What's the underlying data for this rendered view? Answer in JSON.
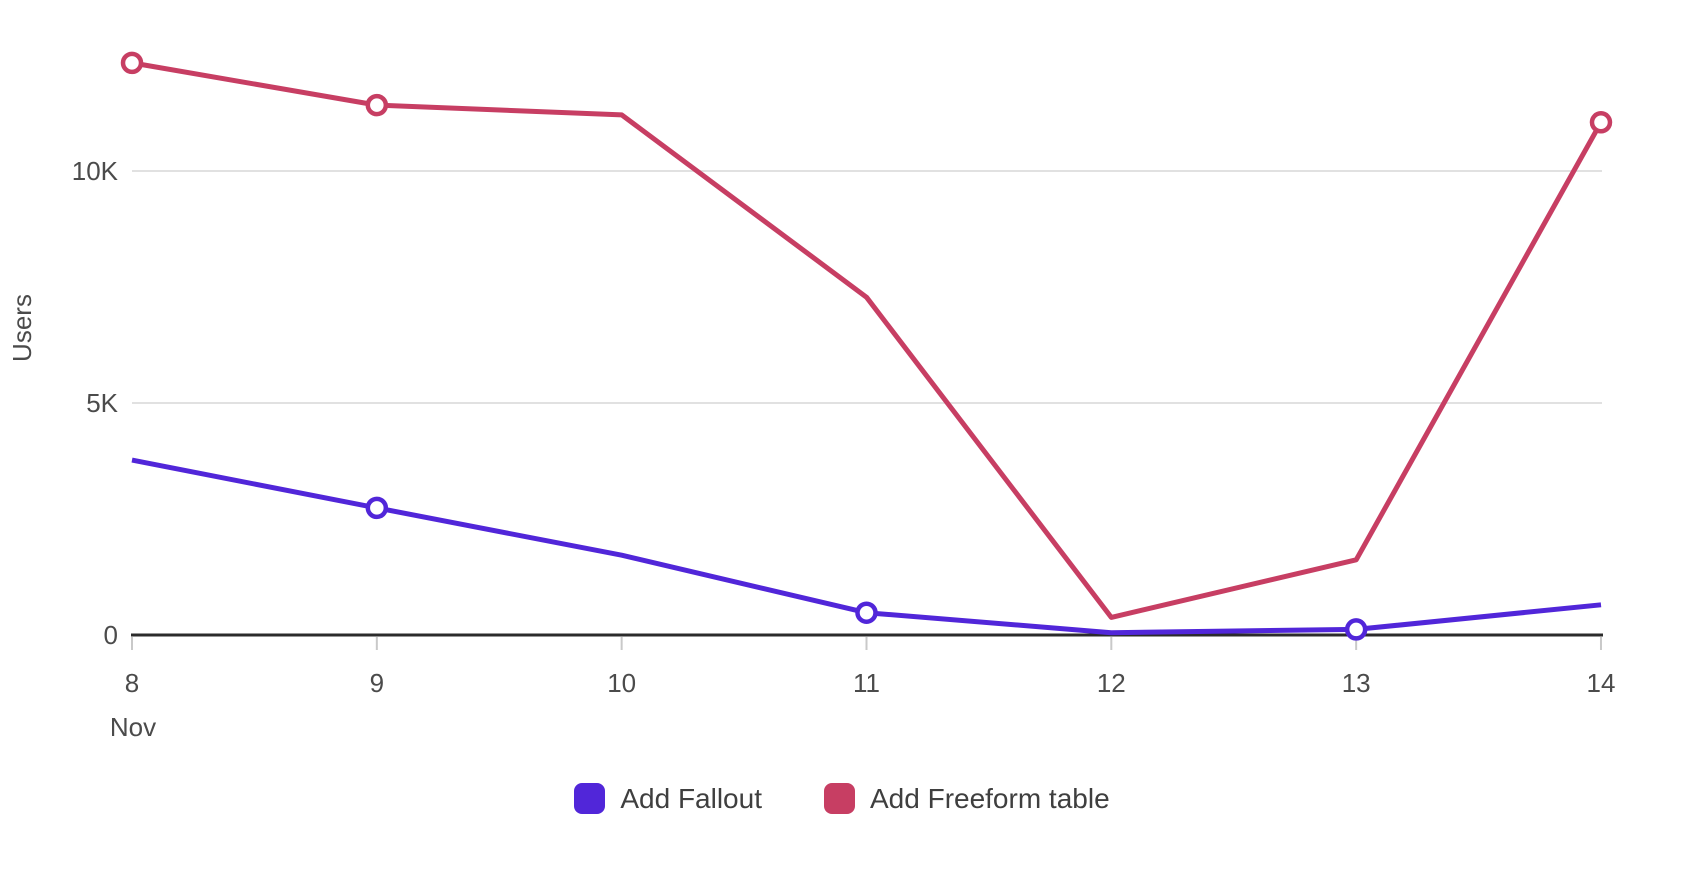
{
  "chart_data": {
    "type": "line",
    "title": "",
    "ylabel": "Users",
    "xlabel": "",
    "x_axis_month": "Nov",
    "categories": [
      "8",
      "9",
      "10",
      "11",
      "12",
      "13",
      "14"
    ],
    "y_ticks": [
      {
        "label": "0",
        "value": 0
      },
      {
        "label": "5K",
        "value": 5000
      },
      {
        "label": "10K",
        "value": 10000
      }
    ],
    "ylim": [
      0,
      12900
    ],
    "grid": "horizontal",
    "legend_position": "bottom",
    "series": [
      {
        "name": "Add Fallout",
        "color": "#5126d9",
        "values": [
          3770,
          2740,
          1720,
          480,
          50,
          120,
          650
        ],
        "markers": [
          false,
          true,
          false,
          true,
          false,
          true,
          false
        ]
      },
      {
        "name": "Add Freeform table",
        "color": "#c73e63",
        "values": [
          12330,
          11420,
          11210,
          7280,
          380,
          1620,
          11050
        ],
        "markers": [
          true,
          true,
          false,
          false,
          false,
          false,
          true
        ]
      }
    ]
  },
  "colors": {
    "axis_line": "#2b2b2b",
    "grid_line": "#e1e1e1",
    "tick_mark": "#c9c9c9",
    "axis_text": "#4b4b4b",
    "marker_fill": "#ffffff"
  }
}
